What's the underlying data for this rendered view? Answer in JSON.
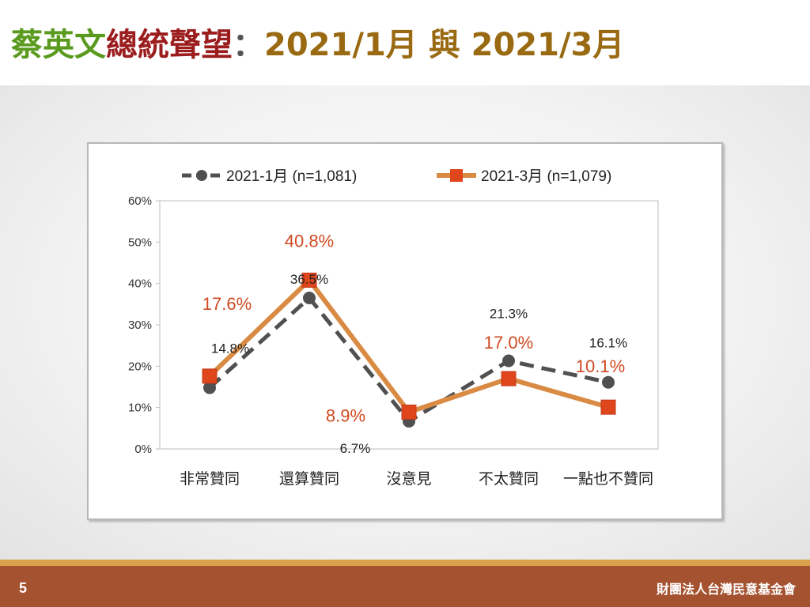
{
  "title": {
    "part1": "蔡英文",
    "part2": "總統聲望",
    "colon": "：",
    "part3": "2021/1月 與 2021/3月"
  },
  "footer": {
    "page_number": "5",
    "organization": "財團法人台灣民意基金會"
  },
  "colors": {
    "series1": "#505050",
    "series2": "#d98b44",
    "series2_marker": "#e0461c",
    "series2_label": "#d04a22",
    "footer": "#a55230"
  },
  "chart_data": {
    "type": "line",
    "categories": [
      "非常贊同",
      "還算贊同",
      "沒意見",
      "不太贊同",
      "一點也不贊同"
    ],
    "ylim": [
      0,
      60
    ],
    "yticks": [
      "0%",
      "10%",
      "20%",
      "30%",
      "40%",
      "50%",
      "60%"
    ],
    "grid": false,
    "legend_position": "top",
    "series": [
      {
        "name": "2021-1月  (n=1,081)",
        "values": [
          14.8,
          36.5,
          6.7,
          21.3,
          16.1
        ],
        "labels": [
          "14.8%",
          "36.5%",
          "6.7%",
          "21.3%",
          "16.1%"
        ],
        "style": "dashed",
        "marker": "circle"
      },
      {
        "name": "2021-3月  (n=1,079)",
        "values": [
          17.6,
          40.8,
          8.9,
          17.0,
          10.1
        ],
        "labels": [
          "17.6%",
          "40.8%",
          "8.9%",
          "17.0%",
          "10.1%"
        ],
        "style": "solid",
        "marker": "square"
      }
    ]
  }
}
